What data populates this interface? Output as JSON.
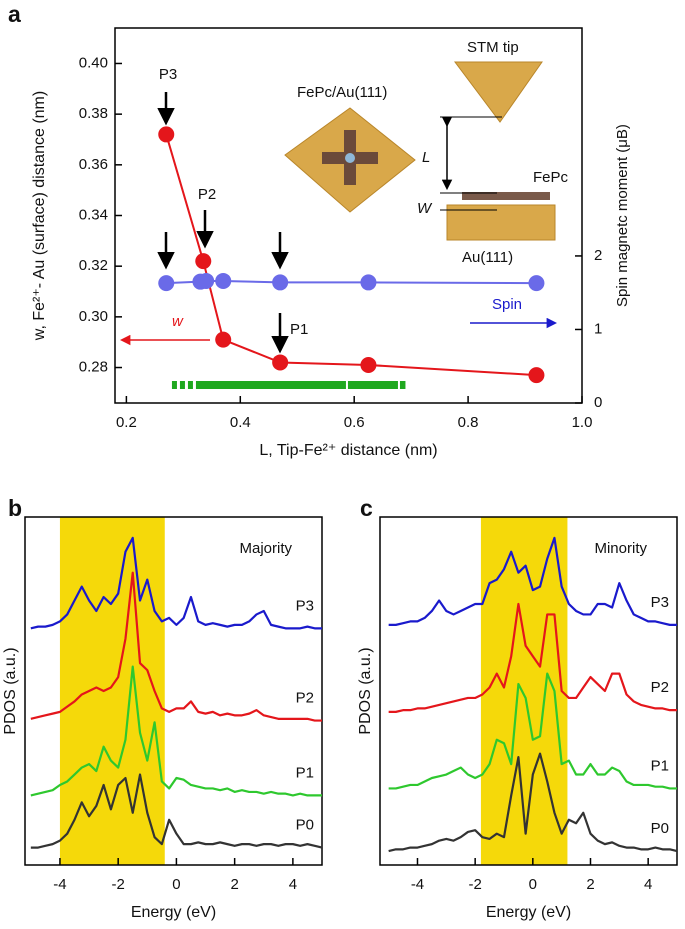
{
  "chart_data": [
    {
      "type": "line",
      "label": "a",
      "xlabel": "L, Tip-Fe²⁺ distance (nm)",
      "ylabel": "w, Fe²⁺- Au (surface) distance (nm)",
      "y2label": "Spin magnetc moment (μB)",
      "xlim": [
        0.18,
        1.0
      ],
      "xticks": [
        0.2,
        0.4,
        0.6,
        0.8,
        {
          "value": 1.0,
          "label": "1.0"
        }
      ],
      "ylim": [
        0.266,
        0.414
      ],
      "yticks": [
        0.28,
        {
          "value": 0.3,
          "label": "0.30"
        },
        0.32,
        0.34,
        0.36,
        0.38,
        {
          "value": 0.4,
          "label": "0.40"
        }
      ],
      "y2lim": [
        0,
        5.1
      ],
      "y2ticks": [
        0,
        1,
        2
      ],
      "band": [
        0.28,
        0.69
      ],
      "band_color": "#1fa81f",
      "series": [
        {
          "name": "w",
          "color": "#e4161b",
          "x": [
            0.27,
            0.335,
            0.37,
            0.47,
            0.625,
            0.92
          ],
          "values": [
            0.372,
            0.322,
            0.291,
            0.282,
            0.281,
            0.277
          ]
        },
        {
          "name": "Spin",
          "color": "#6a6ae8",
          "axis": "y2",
          "x": [
            0.27,
            0.33,
            0.34,
            0.37,
            0.47,
            0.625,
            0.92
          ],
          "values": [
            1.63,
            1.65,
            1.66,
            1.66,
            1.64,
            1.64,
            1.63
          ]
        }
      ],
      "annotations": [
        "P3",
        "P2",
        "P1",
        "FePc/Au(111)",
        "STM tip",
        "L",
        "FePc",
        "W",
        "Au(111)"
      ]
    },
    {
      "type": "line",
      "label": "b",
      "note": "Majority",
      "xlabel": "Energy (eV)",
      "ylabel": "PDOS (a.u.)",
      "xlim": [
        -5.2,
        5.0
      ],
      "xticks": [
        -4,
        -2,
        0,
        2,
        4
      ],
      "ylim": [
        0,
        10
      ],
      "span": [
        -4,
        -0.4
      ],
      "span_color": "#f5d90a",
      "x": [
        -5,
        -4.75,
        -4.5,
        -4.25,
        -4,
        -3.75,
        -3.5,
        -3.25,
        -3,
        -2.75,
        -2.5,
        -2.25,
        -2,
        -1.75,
        -1.5,
        -1.25,
        -1,
        -0.75,
        -0.5,
        -0.25,
        0,
        0.25,
        0.5,
        0.75,
        1,
        1.25,
        1.5,
        1.75,
        2,
        2.25,
        2.5,
        2.75,
        3,
        3.25,
        3.5,
        3.75,
        4,
        4.25,
        4.5,
        4.75,
        5
      ],
      "series": [
        {
          "name": "P3",
          "color": "#1a1acc",
          "values": [
            6.8,
            6.85,
            6.85,
            6.9,
            7.0,
            7.2,
            7.6,
            8.0,
            7.6,
            7.3,
            7.7,
            7.5,
            7.8,
            9.0,
            9.4,
            7.6,
            8.2,
            7.3,
            7.0,
            7.1,
            6.9,
            7.1,
            7.7,
            7.0,
            6.9,
            6.95,
            6.9,
            6.85,
            6.9,
            6.9,
            7.0,
            7.2,
            7.3,
            6.9,
            6.85,
            6.8,
            6.8,
            6.8,
            6.85,
            6.8,
            6.8
          ]
        },
        {
          "name": "P2",
          "color": "#e4161b",
          "values": [
            4.2,
            4.25,
            4.3,
            4.35,
            4.4,
            4.55,
            4.7,
            4.9,
            5.0,
            5.1,
            5.0,
            5.1,
            5.4,
            6.5,
            8.4,
            5.8,
            5.6,
            5.0,
            4.5,
            4.4,
            4.5,
            4.5,
            4.7,
            4.4,
            4.35,
            4.4,
            4.3,
            4.35,
            4.3,
            4.3,
            4.35,
            4.45,
            4.3,
            4.25,
            4.2,
            4.2,
            4.2,
            4.2,
            4.2,
            4.15,
            4.15
          ]
        },
        {
          "name": "P1",
          "color": "#2ec82e",
          "values": [
            2.0,
            2.05,
            2.1,
            2.15,
            2.3,
            2.4,
            2.6,
            2.8,
            2.9,
            2.7,
            3.4,
            3.0,
            2.8,
            3.6,
            5.7,
            3.8,
            3.0,
            4.1,
            2.4,
            2.2,
            2.5,
            2.45,
            2.3,
            2.25,
            2.2,
            2.2,
            2.15,
            2.2,
            2.1,
            2.15,
            2.1,
            2.1,
            2.05,
            2.1,
            2.05,
            2.05,
            2.0,
            2.05,
            2.0,
            2.0,
            2.0
          ]
        },
        {
          "name": "P0",
          "color": "#333333",
          "values": [
            0.5,
            0.5,
            0.55,
            0.6,
            0.7,
            0.9,
            1.3,
            1.8,
            1.4,
            1.7,
            2.3,
            1.6,
            2.3,
            2.5,
            1.5,
            2.6,
            1.5,
            0.8,
            0.6,
            1.3,
            0.9,
            0.6,
            0.6,
            0.65,
            0.6,
            0.6,
            0.65,
            0.6,
            0.55,
            0.6,
            0.6,
            0.55,
            0.6,
            0.6,
            0.55,
            0.6,
            0.6,
            0.55,
            0.6,
            0.55,
            0.5
          ]
        }
      ]
    },
    {
      "type": "line",
      "label": "c",
      "note": "Minority",
      "xlabel": "Energy (eV)",
      "ylabel": "PDOS (a.u.)",
      "xlim": [
        -5.3,
        5.0
      ],
      "xticks": [
        -4,
        -2,
        0,
        2,
        4
      ],
      "ylim": [
        0,
        10
      ],
      "span": [
        -1.8,
        1.2
      ],
      "span_color": "#f5d90a",
      "x": [
        -5,
        -4.75,
        -4.5,
        -4.25,
        -4,
        -3.75,
        -3.5,
        -3.25,
        -3,
        -2.75,
        -2.5,
        -2.25,
        -2,
        -1.75,
        -1.5,
        -1.25,
        -1,
        -0.75,
        -0.5,
        -0.25,
        0,
        0.25,
        0.5,
        0.75,
        1,
        1.25,
        1.5,
        1.75,
        2,
        2.25,
        2.5,
        2.75,
        3,
        3.25,
        3.5,
        3.75,
        4,
        4.25,
        4.5,
        4.75,
        5
      ],
      "series": [
        {
          "name": "P3",
          "color": "#1a1acc",
          "values": [
            6.9,
            6.9,
            6.95,
            7.0,
            7.0,
            7.1,
            7.3,
            7.6,
            7.3,
            7.2,
            7.3,
            7.4,
            7.5,
            7.5,
            8.1,
            8.2,
            8.5,
            9.0,
            8.4,
            8.6,
            7.9,
            8.0,
            8.8,
            9.4,
            8.0,
            7.5,
            7.3,
            7.2,
            7.2,
            7.5,
            7.5,
            7.4,
            8.1,
            7.6,
            7.2,
            7.1,
            7.0,
            7.0,
            6.95,
            6.9,
            6.9
          ]
        },
        {
          "name": "P2",
          "color": "#e4161b",
          "values": [
            4.4,
            4.4,
            4.45,
            4.45,
            4.5,
            4.5,
            4.55,
            4.6,
            4.65,
            4.7,
            4.75,
            4.8,
            4.8,
            4.9,
            5.1,
            5.5,
            5.1,
            6.0,
            7.5,
            6.3,
            6.0,
            5.7,
            7.2,
            7.2,
            5.0,
            4.8,
            4.8,
            5.1,
            5.4,
            5.2,
            5.0,
            5.5,
            5.5,
            4.9,
            4.7,
            4.6,
            4.55,
            4.5,
            4.5,
            4.45,
            4.45
          ]
        },
        {
          "name": "P1",
          "color": "#2ec82e",
          "values": [
            2.2,
            2.2,
            2.25,
            2.3,
            2.3,
            2.4,
            2.5,
            2.55,
            2.6,
            2.7,
            2.8,
            2.6,
            2.5,
            2.6,
            2.9,
            3.6,
            3.5,
            2.9,
            5.2,
            4.8,
            3.6,
            3.7,
            5.5,
            5.0,
            2.9,
            3.0,
            2.6,
            2.6,
            2.9,
            2.6,
            2.6,
            2.8,
            2.7,
            2.4,
            2.3,
            2.3,
            2.3,
            2.25,
            2.25,
            2.2,
            2.2
          ]
        },
        {
          "name": "P0",
          "color": "#333333",
          "values": [
            0.4,
            0.45,
            0.45,
            0.5,
            0.5,
            0.55,
            0.6,
            0.7,
            0.75,
            0.7,
            0.8,
            0.95,
            1.0,
            0.8,
            0.75,
            0.9,
            0.8,
            2.0,
            3.1,
            0.9,
            2.6,
            3.2,
            2.4,
            1.5,
            0.9,
            1.3,
            1.2,
            1.5,
            0.9,
            0.7,
            0.6,
            0.65,
            0.55,
            0.5,
            0.5,
            0.45,
            0.45,
            0.5,
            0.45,
            0.45,
            0.4
          ]
        }
      ]
    }
  ]
}
